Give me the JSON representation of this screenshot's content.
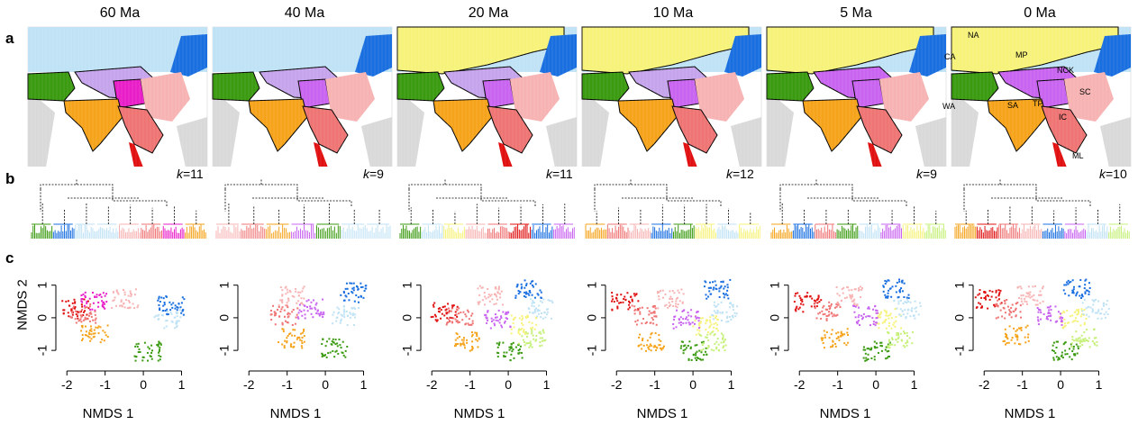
{
  "panel_labels": {
    "a": "a",
    "b": "b",
    "c": "c"
  },
  "time_labels": [
    "60 Ma",
    "40 Ma",
    "20 Ma",
    "10 Ma",
    "5 Ma",
    "0 Ma"
  ],
  "k_prefix": "k",
  "k_values": [
    "=11",
    "=9",
    "=11",
    "=12",
    "=9",
    "=10"
  ],
  "region_labels": {
    "NA": "NA",
    "CA": "CA",
    "MP": "MP",
    "NCK": "NCK",
    "WA": "WA",
    "TP": "TP",
    "SC": "SC",
    "SA": "SA",
    "IC": "IC",
    "ML": "ML"
  },
  "colors": {
    "sea": "#bfe2f5",
    "land": "#d9d9d9",
    "green": "#3a9a10",
    "orange": "#f5a31a",
    "magenta": "#e81ec8",
    "violet": "#c964f0",
    "lavender": "#c6a4ec",
    "pink": "#f7b3b3",
    "salmon": "#ef7474",
    "red": "#e01010",
    "blue": "#1a6fe0",
    "lightblue": "#bfe2f5",
    "yellow": "#f6f27a",
    "lime": "#c6f07a"
  },
  "chart_data": {
    "type": "scatter",
    "xlabel": "NMDS 1",
    "ylabel": "NMDS 2",
    "x_ticks": [
      "-2",
      "-1",
      "0",
      "1"
    ],
    "y_ticks": [
      "-1",
      "0",
      "1"
    ],
    "panels": [
      {
        "time": "60 Ma",
        "k": 11
      },
      {
        "time": "40 Ma",
        "k": 9
      },
      {
        "time": "20 Ma",
        "k": 11
      },
      {
        "time": "10 Ma",
        "k": 12
      },
      {
        "time": "5 Ma",
        "k": 9
      },
      {
        "time": "0 Ma",
        "k": 10
      }
    ]
  }
}
